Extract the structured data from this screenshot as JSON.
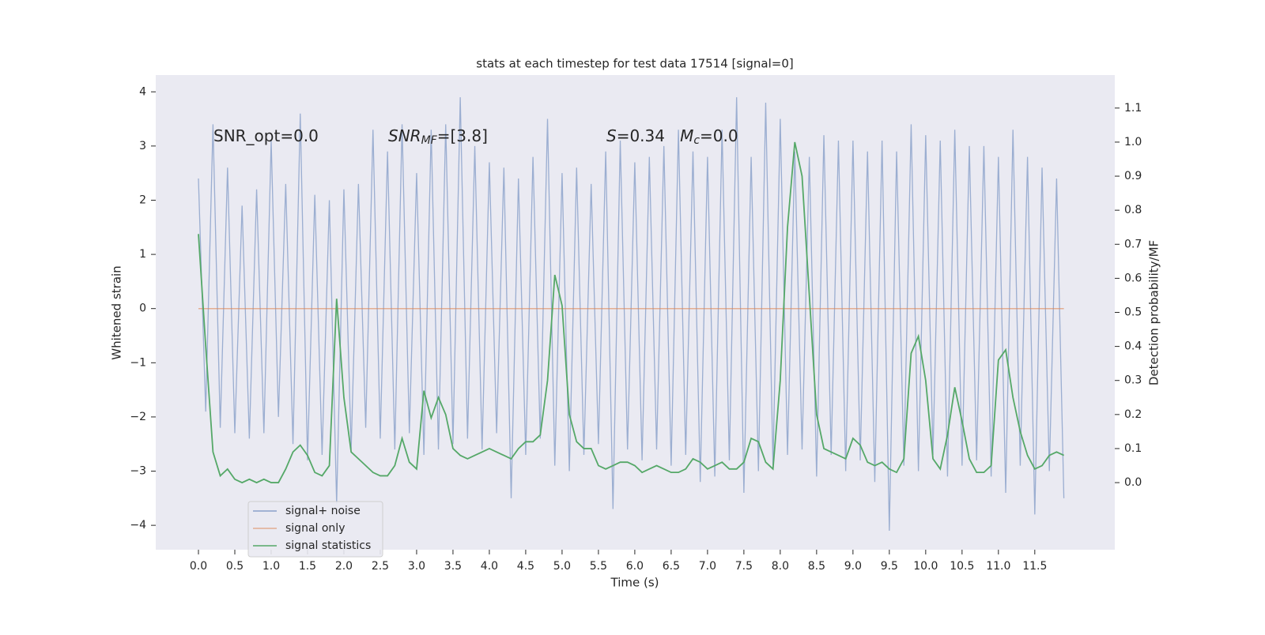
{
  "chart_data": {
    "type": "line",
    "title": "stats at each timestep for test data 17514 [signal=0]",
    "xlabel": "Time (s)",
    "ylabel": "Whitened strain",
    "y2label": "Detection probability/MF",
    "annotations": [
      {
        "parts": [
          {
            "text": "SNR_opt=0.0",
            "style": "normal"
          }
        ]
      },
      {
        "parts": [
          {
            "text": "SNR",
            "style": "italic"
          },
          {
            "text": "MF",
            "style": "italic-sub"
          },
          {
            "text": "=[3.8]",
            "style": "normal"
          }
        ]
      },
      {
        "parts": [
          {
            "text": "S",
            "style": "italic"
          },
          {
            "text": "=0.34   ",
            "style": "normal"
          },
          {
            "text": "M",
            "style": "italic"
          },
          {
            "text": "c",
            "style": "italic-sub"
          },
          {
            "text": "=0.0",
            "style": "normal"
          }
        ]
      }
    ],
    "grid": true,
    "legend": "lower left",
    "xlim": [
      -0.587,
      12.6
    ],
    "ylim": [
      -4.45,
      4.31
    ],
    "y2lim": [
      -0.197,
      1.197
    ],
    "xticks": [
      {
        "value": 0,
        "label": "0.0"
      },
      0.5,
      {
        "value": 1,
        "label": "1.0"
      },
      1.5,
      {
        "value": 2,
        "label": "2.0"
      },
      2.5,
      {
        "value": 3,
        "label": "3.0"
      },
      3.5,
      {
        "value": 4,
        "label": "4.0"
      },
      4.5,
      {
        "value": 5,
        "label": "5.0"
      },
      5.5,
      {
        "value": 6,
        "label": "6.0"
      },
      6.5,
      {
        "value": 7,
        "label": "7.0"
      },
      7.5,
      {
        "value": 8,
        "label": "8.0"
      },
      8.5,
      {
        "value": 9,
        "label": "9.0"
      },
      9.5,
      {
        "value": 10,
        "label": "10.0"
      },
      10.5,
      {
        "value": 11,
        "label": "11.0"
      },
      11.5
    ],
    "yticks": [
      {
        "value": -4,
        "label": "−4"
      },
      {
        "value": -3,
        "label": "−3"
      },
      {
        "value": -2,
        "label": "−2"
      },
      {
        "value": -1,
        "label": "−1"
      },
      0,
      1,
      2,
      3,
      4
    ],
    "y2ticks": [
      {
        "value": 0,
        "label": "0.0"
      },
      0.1,
      0.2,
      0.3,
      0.4,
      0.5,
      0.6,
      0.7,
      0.8,
      0.9,
      {
        "value": 1,
        "label": "1.0"
      },
      1.1
    ],
    "x": [
      0,
      0.1,
      0.2,
      0.3,
      0.4,
      0.5,
      0.6,
      0.7,
      0.8,
      0.9,
      1,
      1.1,
      1.2,
      1.3,
      1.4,
      1.5,
      1.6,
      1.7,
      1.8,
      1.9,
      2,
      2.1,
      2.2,
      2.3,
      2.4,
      2.5,
      2.6,
      2.7,
      2.8,
      2.9,
      3,
      3.1,
      3.2,
      3.3,
      3.4,
      3.5,
      3.6,
      3.7,
      3.8,
      3.9,
      4,
      4.1,
      4.2,
      4.3,
      4.4,
      4.5,
      4.6,
      4.7,
      4.8,
      4.9,
      5,
      5.1,
      5.2,
      5.3,
      5.4,
      5.5,
      5.6,
      5.7,
      5.8,
      5.9,
      6,
      6.1,
      6.2,
      6.3,
      6.4,
      6.5,
      6.6,
      6.7,
      6.8,
      6.9,
      7,
      7.1,
      7.2,
      7.3,
      7.4,
      7.5,
      7.6,
      7.7,
      7.8,
      7.9,
      8,
      8.1,
      8.2,
      8.3,
      8.4,
      8.5,
      8.6,
      8.7,
      8.8,
      8.9,
      9,
      9.1,
      9.2,
      9.3,
      9.4,
      9.5,
      9.6,
      9.7,
      9.8,
      9.9,
      10,
      10.1,
      10.2,
      10.3,
      10.4,
      10.5,
      10.6,
      10.7,
      10.8,
      10.9,
      11,
      11.1,
      11.2,
      11.3,
      11.4,
      11.5,
      11.6,
      11.7,
      11.8,
      11.9
    ],
    "series": [
      {
        "name": "signal+ noise",
        "color": "#4c72b0",
        "values": [
          2.4,
          -1.9,
          3.4,
          -2.2,
          2.6,
          -2.3,
          1.9,
          -2.4,
          2.2,
          -2.3,
          3.1,
          -2.0,
          2.3,
          -2.5,
          3.6,
          -2.8,
          2.1,
          -2.7,
          2.0,
          -3.6,
          2.2,
          -2.6,
          2.3,
          -2.2,
          3.3,
          -2.4,
          2.9,
          -2.6,
          3.4,
          -2.3,
          2.5,
          -2.7,
          3.3,
          -2.6,
          3.4,
          -2.5,
          3.9,
          -2.4,
          3.0,
          -2.6,
          2.7,
          -2.3,
          2.6,
          -3.5,
          2.4,
          -2.7,
          2.8,
          -2.4,
          3.5,
          -2.9,
          2.5,
          -3.0,
          2.6,
          -2.7,
          2.3,
          -2.5,
          2.9,
          -3.7,
          3.1,
          -2.6,
          2.7,
          -2.8,
          2.8,
          -2.6,
          3.0,
          -2.9,
          3.3,
          -2.7,
          2.9,
          -3.2,
          2.8,
          -3.1,
          3.3,
          -2.8,
          3.9,
          -3.4,
          2.8,
          -3.0,
          3.8,
          -2.9,
          3.5,
          -2.7,
          2.9,
          -2.6,
          2.8,
          -3.1,
          3.2,
          -2.7,
          3.1,
          -3.0,
          3.1,
          -2.8,
          2.9,
          -3.2,
          3.1,
          -4.1,
          2.9,
          -2.9,
          3.4,
          -3.0,
          3.2,
          -2.7,
          3.1,
          -3.1,
          3.3,
          -2.9,
          3.0,
          -2.8,
          3.0,
          -3.1,
          2.8,
          -3.4,
          3.3,
          -2.9,
          2.8,
          -3.8,
          2.6,
          -3.0,
          2.4,
          -3.5
        ]
      },
      {
        "name": "signal only",
        "color": "#dd8452",
        "values": [
          0,
          0,
          0,
          0,
          0,
          0,
          0,
          0,
          0,
          0,
          0,
          0,
          0,
          0,
          0,
          0,
          0,
          0,
          0,
          0,
          0,
          0,
          0,
          0,
          0,
          0,
          0,
          0,
          0,
          0,
          0,
          0,
          0,
          0,
          0,
          0,
          0,
          0,
          0,
          0,
          0,
          0,
          0,
          0,
          0,
          0,
          0,
          0,
          0,
          0,
          0,
          0,
          0,
          0,
          0,
          0,
          0,
          0,
          0,
          0,
          0,
          0,
          0,
          0,
          0,
          0,
          0,
          0,
          0,
          0,
          0,
          0,
          0,
          0,
          0,
          0,
          0,
          0,
          0,
          0,
          0,
          0,
          0,
          0,
          0,
          0,
          0,
          0,
          0,
          0,
          0,
          0,
          0,
          0,
          0,
          0,
          0,
          0,
          0,
          0,
          0,
          0,
          0,
          0,
          0,
          0,
          0,
          0,
          0,
          0,
          0,
          0,
          0,
          0,
          0,
          0,
          0,
          0,
          0,
          0
        ]
      },
      {
        "name": "signal statistics",
        "color": "#55a868",
        "axis": "y2",
        "values": [
          0.73,
          0.4,
          0.09,
          0.02,
          0.04,
          0.01,
          0,
          0.01,
          0,
          0.01,
          0,
          0,
          0.04,
          0.09,
          0.11,
          0.08,
          0.03,
          0.02,
          0.05,
          0.54,
          0.25,
          0.09,
          0.07,
          0.05,
          0.03,
          0.02,
          0.02,
          0.05,
          0.13,
          0.06,
          0.04,
          0.27,
          0.19,
          0.25,
          0.2,
          0.1,
          0.08,
          0.07,
          0.08,
          0.09,
          0.1,
          0.09,
          0.08,
          0.07,
          0.1,
          0.12,
          0.12,
          0.14,
          0.3,
          0.61,
          0.52,
          0.2,
          0.12,
          0.1,
          0.1,
          0.05,
          0.04,
          0.05,
          0.06,
          0.06,
          0.05,
          0.03,
          0.04,
          0.05,
          0.04,
          0.03,
          0.03,
          0.04,
          0.07,
          0.06,
          0.04,
          0.05,
          0.06,
          0.04,
          0.04,
          0.06,
          0.13,
          0.12,
          0.06,
          0.04,
          0.3,
          0.75,
          1.0,
          0.9,
          0.55,
          0.2,
          0.1,
          0.09,
          0.08,
          0.07,
          0.13,
          0.11,
          0.06,
          0.05,
          0.06,
          0.04,
          0.03,
          0.07,
          0.38,
          0.43,
          0.3,
          0.07,
          0.04,
          0.14,
          0.28,
          0.18,
          0.07,
          0.03,
          0.03,
          0.05,
          0.36,
          0.39,
          0.25,
          0.15,
          0.08,
          0.04,
          0.05,
          0.08,
          0.09,
          0.08
        ]
      }
    ]
  }
}
